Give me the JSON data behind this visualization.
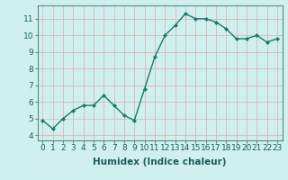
{
  "x": [
    0,
    1,
    2,
    3,
    4,
    5,
    6,
    7,
    8,
    9,
    10,
    11,
    12,
    13,
    14,
    15,
    16,
    17,
    18,
    19,
    20,
    21,
    22,
    23
  ],
  "y": [
    4.9,
    4.4,
    5.0,
    5.5,
    5.8,
    5.8,
    6.4,
    5.8,
    5.2,
    4.9,
    6.8,
    8.7,
    10.0,
    10.6,
    11.3,
    11.0,
    11.0,
    10.8,
    10.4,
    9.8,
    9.8,
    10.0,
    9.6,
    9.8
  ],
  "line_color": "#1a7a6e",
  "marker": "D",
  "marker_size": 2.0,
  "background_color": "#cff0ee",
  "grid_color": "#b0ddd8",
  "xlabel": "Humidex (Indice chaleur)",
  "xlim": [
    -0.5,
    23.5
  ],
  "ylim": [
    3.7,
    11.8
  ],
  "yticks": [
    4,
    5,
    6,
    7,
    8,
    9,
    10,
    11
  ],
  "xlabel_fontsize": 7.5,
  "tick_fontsize": 6.5,
  "line_width": 1.0
}
